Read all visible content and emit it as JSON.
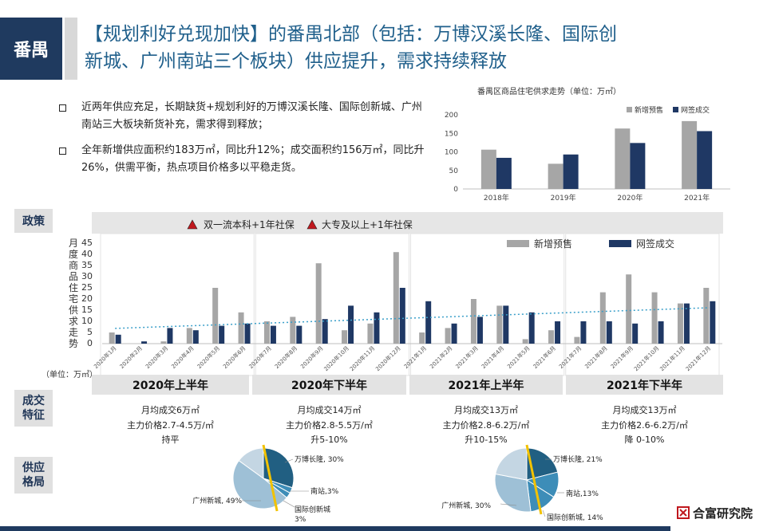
{
  "header": {
    "region_tag": "番禺",
    "title_line1": "【规划利好兑现加快】的番禺北部（包括：万博汉溪长隆、国际创",
    "title_line2": "新城、广州南站三个板块）供应提升，需求持续释放"
  },
  "bullets": [
    {
      "text": "近两年供应充足，长期缺货+规划利好的万博汉溪长隆、国际创新城、广州南站三大板块新货补充，需求得到释放；"
    },
    {
      "text": "全年新增供应面积约183万㎡，同比升12%；成交面积约156万㎡，同比升26%，供需平衡，热点项目价格多以平稳走货。"
    }
  ],
  "side_tags": {
    "policy": "政策",
    "deal": "成交特征",
    "supply": "供应格局"
  },
  "policy_legend": [
    {
      "label": "双一流本科+1年社保",
      "color": "#c0181e"
    },
    {
      "label": "大专及以上+1年社保",
      "color": "#c0181e"
    }
  ],
  "colors": {
    "new_supply": "#a6a6a6",
    "signed": "#1f3864",
    "title_blue": "#1f5f8b",
    "trend": "#3a9fc9"
  },
  "chart_data": [
    {
      "type": "bar",
      "title": "番禺区商品住宅供求走势（单位：万㎡）",
      "categories": [
        "2018年",
        "2019年",
        "2020年",
        "2021年"
      ],
      "series": [
        {
          "name": "新增预售",
          "values": [
            106,
            68,
            163,
            183
          ]
        },
        {
          "name": "网签成交",
          "values": [
            84,
            93,
            124,
            156
          ]
        }
      ],
      "ylim": [
        0,
        200
      ],
      "yticks": [
        0,
        50,
        100,
        150,
        200
      ],
      "legend": "top-right"
    },
    {
      "type": "bar",
      "ylabel": "月度商品住宅供求走势",
      "unit_label": "（单位：万㎡）",
      "categories": [
        "2020年1月",
        "2020年2月",
        "2020年3月",
        "2020年4月",
        "2020年5月",
        "2020年6月",
        "2020年7月",
        "2020年8月",
        "2020年9月",
        "2020年10月",
        "2020年11月",
        "2020年12月",
        "2021年1月",
        "2021年2月",
        "2021年3月",
        "2021年4月",
        "2021年5月",
        "2021年6月",
        "2021年7月",
        "2021年8月",
        "2021年9月",
        "2021年10月",
        "2021年11月",
        "2021年12月"
      ],
      "series": [
        {
          "name": "新增预售",
          "values": [
            5,
            0,
            1,
            7,
            25,
            14,
            10,
            12,
            36,
            6,
            9,
            41,
            5,
            7,
            20,
            17,
            2,
            6,
            3,
            23,
            31,
            23,
            18,
            25
          ]
        },
        {
          "name": "网签成交",
          "values": [
            4,
            1,
            7,
            6,
            8,
            9,
            8,
            8,
            11,
            17,
            14,
            25,
            19,
            9,
            12,
            17,
            14,
            10,
            10,
            10,
            9,
            10,
            18,
            19
          ]
        }
      ],
      "ylim": [
        0,
        45
      ],
      "yticks": [
        0,
        5,
        10,
        15,
        20,
        25,
        30,
        35,
        40,
        45
      ],
      "trendline": true,
      "legend": "top-right"
    },
    {
      "type": "pie",
      "labels": [
        "万博长隆",
        "南站",
        "国际创新城",
        "广州新城"
      ],
      "values": [
        30,
        3,
        3,
        49
      ],
      "label_texts": [
        "万博长隆, 30%",
        "南站,3%",
        "国际创新城, 3%",
        "广州新城, 49%"
      ]
    },
    {
      "type": "pie",
      "labels": [
        "万博长隆",
        "南站",
        "国际创新城",
        "广州新城"
      ],
      "values": [
        21,
        13,
        14,
        30
      ],
      "label_texts": [
        "万博长隆, 21%",
        "南站,13%",
        "国际创新城, 14%",
        "广州新城, 30%"
      ]
    }
  ],
  "periods": [
    {
      "title": "2020年上半年",
      "l1": "月均成交6万㎡",
      "l2": "主力价格2.7-4.5万/㎡",
      "l3": "持平"
    },
    {
      "title": "2020年下半年",
      "l1": "月均成交14万㎡",
      "l2": "主力价格2.8-5.5万/㎡",
      "l3": "升5-10%"
    },
    {
      "title": "2021年上半年",
      "l1": "月均成交13万㎡",
      "l2": "主力价格2.8-6.2万/㎡",
      "l3": "升10-15%"
    },
    {
      "title": "2021年下半年",
      "l1": "月均成交13万㎡",
      "l2": "主力价格2.6-6.2万/㎡",
      "l3": "降 0-10%"
    }
  ],
  "logo": {
    "text": "合富研究院"
  }
}
